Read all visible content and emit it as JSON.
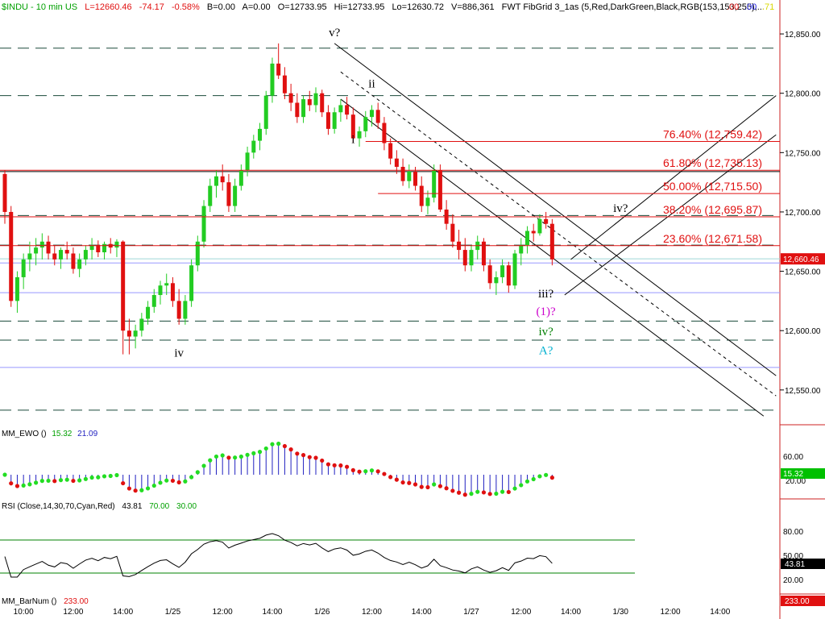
{
  "header": {
    "symbol": "$INDU - 10 min  US",
    "last": "L=12660.46",
    "change": "-74.17",
    "change_pct": "-0.58%",
    "bid": "B=0.00",
    "ask": "A=0.00",
    "open": "O=12733.95",
    "high": "Hi=12733.95",
    "low": "Lo=12630.72",
    "volume": "V=886,361",
    "study": "FWT FibGrid 3_1as (5,Red,DarkGreen,Black,RGB(153,153,255),...",
    "tail1": ".00",
    "tail2": ".00",
    "tail3": ".71"
  },
  "chart_data": {
    "type": "candlestick",
    "title": "$INDU - 10 min  US",
    "price_axis": {
      "ticks": [
        "12,850.00",
        "12,800.00",
        "12,750.00",
        "12,700.00",
        "12,650.00",
        "12,600.00",
        "12,550.00"
      ],
      "tick_values": [
        12850,
        12800,
        12750,
        12700,
        12650,
        12600,
        12550
      ],
      "range": [
        12520,
        12865
      ]
    },
    "last_price_label": "12,660.46",
    "last_price": 12660.46,
    "ghost_price": 12656.7,
    "time_axis": {
      "labels": [
        "10:00",
        "12:00",
        "14:00",
        "1/25",
        "12:00",
        "14:00",
        "1/26",
        "12:00",
        "14:00",
        "1/27",
        "12:00",
        "14:00",
        "1/30",
        "12:00",
        "14:00"
      ],
      "slots": [
        3,
        11,
        19,
        27,
        35,
        43,
        51,
        59,
        67,
        75,
        83,
        91,
        99,
        107,
        115
      ]
    },
    "fib_levels": [
      {
        "label": "76.40% (12,759.42)",
        "value": 12759.42
      },
      {
        "label": "61.80% (12,735.13)",
        "value": 12735.13
      },
      {
        "label": "50.00% (12,715.50)",
        "value": 12715.5
      },
      {
        "label": "38.20% (12,695.87)",
        "value": 12695.87
      },
      {
        "label": "23.60% (12,671.58)",
        "value": 12671.58
      }
    ],
    "dashed_levels": [
      12838,
      12798,
      12697,
      12672,
      12608,
      12592,
      12533
    ],
    "solid_levels": [
      12734
    ],
    "blue_levels": [
      12657,
      12632,
      12569
    ],
    "wave_labels": [
      {
        "text": "v?",
        "slot": 53,
        "price": 12848,
        "color": "#000000"
      },
      {
        "text": "ii",
        "slot": 59,
        "price": 12805,
        "color": "#000000"
      },
      {
        "text": "i",
        "slot": 56,
        "price": 12758,
        "color": "#000000"
      },
      {
        "text": "iv",
        "slot": 28,
        "price": 12578,
        "color": "#000000"
      },
      {
        "text": "iv?",
        "slot": 99,
        "price": 12700,
        "color": "#000000"
      },
      {
        "text": "iii?",
        "slot": 87,
        "price": 12628,
        "color": "#000000"
      },
      {
        "text": "(1)?",
        "slot": 87,
        "price": 12613,
        "color": "#cc00cc"
      },
      {
        "text": "iv?",
        "slot": 87,
        "price": 12596,
        "color": "#008000"
      },
      {
        "text": "A?",
        "slot": 87,
        "price": 12580,
        "color": "#00b0d0"
      }
    ],
    "candles": [
      [
        12732,
        12735,
        12690,
        12700
      ],
      [
        12700,
        12705,
        12620,
        12625
      ],
      [
        12625,
        12650,
        12615,
        12645
      ],
      [
        12645,
        12665,
        12635,
        12660
      ],
      [
        12660,
        12675,
        12650,
        12665
      ],
      [
        12665,
        12678,
        12655,
        12670
      ],
      [
        12670,
        12682,
        12660,
        12675
      ],
      [
        12675,
        12680,
        12660,
        12665
      ],
      [
        12665,
        12672,
        12655,
        12660
      ],
      [
        12660,
        12670,
        12652,
        12668
      ],
      [
        12668,
        12675,
        12660,
        12665
      ],
      [
        12665,
        12670,
        12648,
        12652
      ],
      [
        12652,
        12665,
        12645,
        12660
      ],
      [
        12660,
        12672,
        12655,
        12668
      ],
      [
        12668,
        12678,
        12660,
        12672
      ],
      [
        12672,
        12676,
        12662,
        12666
      ],
      [
        12666,
        12675,
        12660,
        12673
      ],
      [
        12673,
        12678,
        12665,
        12670
      ],
      [
        12670,
        12677,
        12662,
        12675
      ],
      [
        12675,
        12676,
        12580,
        12600
      ],
      [
        12600,
        12610,
        12580,
        12595
      ],
      [
        12595,
        12605,
        12585,
        12600
      ],
      [
        12600,
        12615,
        12595,
        12610
      ],
      [
        12610,
        12625,
        12605,
        12620
      ],
      [
        12620,
        12635,
        12615,
        12630
      ],
      [
        12630,
        12642,
        12622,
        12638
      ],
      [
        12638,
        12648,
        12630,
        12640
      ],
      [
        12640,
        12645,
        12620,
        12625
      ],
      [
        12625,
        12635,
        12605,
        12610
      ],
      [
        12610,
        12630,
        12605,
        12625
      ],
      [
        12625,
        12660,
        12620,
        12655
      ],
      [
        12655,
        12680,
        12650,
        12675
      ],
      [
        12675,
        12710,
        12670,
        12705
      ],
      [
        12705,
        12728,
        12700,
        12722
      ],
      [
        12722,
        12735,
        12712,
        12730
      ],
      [
        12730,
        12740,
        12718,
        12725
      ],
      [
        12725,
        12732,
        12700,
        12705
      ],
      [
        12705,
        12728,
        12700,
        12722
      ],
      [
        12722,
        12740,
        12718,
        12735
      ],
      [
        12735,
        12755,
        12730,
        12750
      ],
      [
        12750,
        12765,
        12745,
        12760
      ],
      [
        12760,
        12775,
        12752,
        12770
      ],
      [
        12770,
        12802,
        12765,
        12798
      ],
      [
        12798,
        12830,
        12792,
        12825
      ],
      [
        12825,
        12842,
        12812,
        12815
      ],
      [
        12815,
        12822,
        12795,
        12800
      ],
      [
        12800,
        12808,
        12785,
        12792
      ],
      [
        12792,
        12800,
        12775,
        12780
      ],
      [
        12780,
        12798,
        12775,
        12795
      ],
      [
        12795,
        12802,
        12785,
        12790
      ],
      [
        12790,
        12805,
        12784,
        12800
      ],
      [
        12800,
        12803,
        12780,
        12784
      ],
      [
        12784,
        12790,
        12765,
        12770
      ],
      [
        12770,
        12788,
        12766,
        12784
      ],
      [
        12784,
        12795,
        12776,
        12790
      ],
      [
        12790,
        12797,
        12778,
        12782
      ],
      [
        12782,
        12788,
        12758,
        12762
      ],
      [
        12762,
        12772,
        12755,
        12768
      ],
      [
        12768,
        12785,
        12763,
        12780
      ],
      [
        12780,
        12790,
        12772,
        12786
      ],
      [
        12786,
        12792,
        12770,
        12775
      ],
      [
        12775,
        12780,
        12752,
        12758
      ],
      [
        12758,
        12762,
        12740,
        12745
      ],
      [
        12745,
        12752,
        12732,
        12738
      ],
      [
        12738,
        12745,
        12722,
        12726
      ],
      [
        12726,
        12740,
        12720,
        12734
      ],
      [
        12734,
        12738,
        12718,
        12722
      ],
      [
        12722,
        12730,
        12700,
        12705
      ],
      [
        12705,
        12718,
        12698,
        12712
      ],
      [
        12712,
        12740,
        12708,
        12735
      ],
      [
        12735,
        12740,
        12700,
        12702
      ],
      [
        12702,
        12710,
        12685,
        12690
      ],
      [
        12690,
        12698,
        12670,
        12675
      ],
      [
        12675,
        12685,
        12660,
        12668
      ],
      [
        12668,
        12678,
        12650,
        12655
      ],
      [
        12655,
        12672,
        12650,
        12668
      ],
      [
        12668,
        12680,
        12660,
        12675
      ],
      [
        12675,
        12678,
        12650,
        12655
      ],
      [
        12655,
        12660,
        12635,
        12640
      ],
      [
        12640,
        12650,
        12630,
        12645
      ],
      [
        12645,
        12660,
        12640,
        12655
      ],
      [
        12655,
        12658,
        12632,
        12638
      ],
      [
        12638,
        12668,
        12635,
        12665
      ],
      [
        12665,
        12678,
        12655,
        12672
      ],
      [
        12672,
        12688,
        12665,
        12684
      ],
      [
        12684,
        12690,
        12675,
        12682
      ],
      [
        12682,
        12698,
        12680,
        12694
      ],
      [
        12694,
        12700,
        12686,
        12690
      ],
      [
        12690,
        12694,
        12655,
        12660
      ]
    ],
    "candle_slot_start": 0,
    "ewo_panel": {
      "title": "MM_EWO ()",
      "value1": "15.32",
      "value2": "21.09",
      "ticks": [
        "60.00",
        "20.00"
      ],
      "last_label": "15.32"
    },
    "rsi_panel": {
      "title": "RSI (Close,14,30,70,Cyan,Red)",
      "value": "43.81",
      "value2": "70.00",
      "value3": "30.00",
      "ticks": [
        "80.00",
        "50.00",
        "20.00"
      ],
      "last_label": "43.81"
    },
    "barnum_panel": {
      "title": "MM_BarNum ()",
      "value": "233.00",
      "last_label": "233.00"
    }
  }
}
